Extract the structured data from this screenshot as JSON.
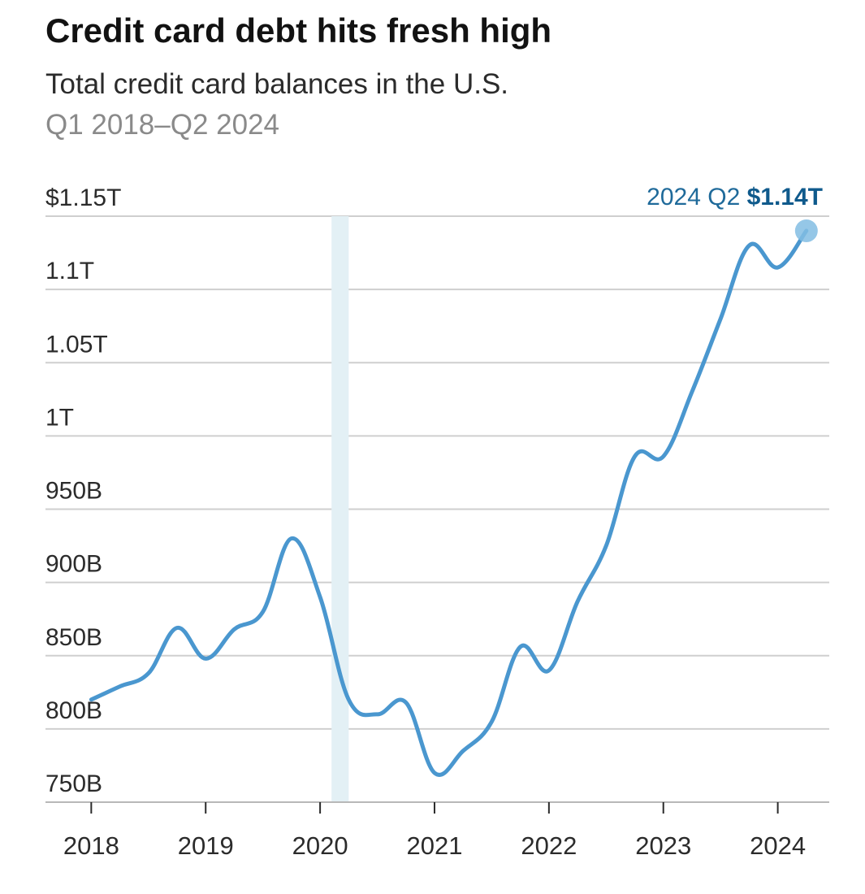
{
  "header": {
    "title": "Credit card debt hits fresh high",
    "subtitle": "Total credit card balances in the U.S.",
    "date_range": "Q1 2018–Q2 2024"
  },
  "colors": {
    "line": "#4a97cf",
    "highlight_band": "#e3f0f5",
    "endpoint": "#82bde3",
    "annotation": "#1f6a9a",
    "gridline": "#cfcfcf",
    "axis": "#b8b8b8"
  },
  "chart_data": {
    "type": "line",
    "series": [
      {
        "points": [
          [
            2018.0,
            820
          ],
          [
            2018.25,
            829
          ],
          [
            2018.5,
            838
          ],
          [
            2018.75,
            869
          ],
          [
            2019.0,
            848
          ],
          [
            2019.25,
            868
          ],
          [
            2019.5,
            880
          ],
          [
            2019.75,
            930
          ],
          [
            2020.0,
            890
          ],
          [
            2020.25,
            820
          ],
          [
            2020.5,
            810
          ],
          [
            2020.75,
            818
          ],
          [
            2021.0,
            770
          ],
          [
            2021.25,
            785
          ],
          [
            2021.5,
            805
          ],
          [
            2021.75,
            856
          ],
          [
            2022.0,
            840
          ],
          [
            2022.25,
            887
          ],
          [
            2022.5,
            925
          ],
          [
            2022.75,
            986
          ],
          [
            2023.0,
            986
          ],
          [
            2023.25,
            1030
          ],
          [
            2023.5,
            1080
          ],
          [
            2023.75,
            1130
          ],
          [
            2024.0,
            1115
          ],
          [
            2024.25,
            1140
          ]
        ]
      }
    ],
    "y_ticks": [
      {
        "value": 1150,
        "label": "$1.15T"
      },
      {
        "value": 1100,
        "label": "1.1T"
      },
      {
        "value": 1050,
        "label": "1.05T"
      },
      {
        "value": 1000,
        "label": "1T"
      },
      {
        "value": 950,
        "label": "950B"
      },
      {
        "value": 900,
        "label": "900B"
      },
      {
        "value": 850,
        "label": "850B"
      },
      {
        "value": 800,
        "label": "800B"
      },
      {
        "value": 750,
        "label": "750B"
      }
    ],
    "x_ticks": [
      {
        "value": 2018,
        "label": "2018"
      },
      {
        "value": 2019,
        "label": "2019"
      },
      {
        "value": 2020,
        "label": "2020"
      },
      {
        "value": 2021,
        "label": "2021"
      },
      {
        "value": 2022,
        "label": "2022"
      },
      {
        "value": 2023,
        "label": "2023"
      },
      {
        "value": 2024,
        "label": "2024"
      }
    ],
    "xlim": [
      2017.6,
      2024.45
    ],
    "ylim": [
      750,
      1150
    ],
    "grid": true,
    "highlight_band": [
      2020.1,
      2020.25
    ],
    "annotation": {
      "x": 2024.25,
      "y": 1140,
      "label": "2024 Q2",
      "value_label": "$1.14T"
    }
  }
}
